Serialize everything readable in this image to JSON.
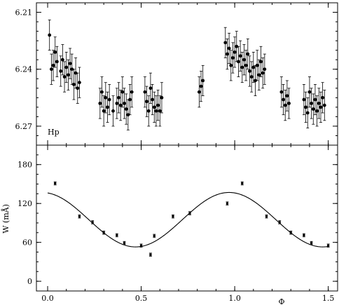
{
  "chart_data": [
    {
      "type": "scatter",
      "panel": "top",
      "annotation": "Hp",
      "xlim": [
        -0.06,
        1.55
      ],
      "ylim": [
        6.28,
        6.205
      ],
      "y_inverted": true,
      "yticks": [
        6.21,
        6.24,
        6.27
      ],
      "ytick_labels": [
        "6.21",
        "6.24",
        "6.27"
      ],
      "error_bars": true,
      "series": [
        {
          "x": [
            0.01,
            0.02,
            0.03,
            0.04,
            0.05,
            0.07,
            0.08,
            0.09,
            0.1,
            0.11,
            0.12,
            0.13,
            0.14,
            0.15,
            0.16,
            0.17,
            0.28,
            0.29,
            0.3,
            0.31,
            0.32,
            0.33,
            0.35,
            0.37,
            0.38,
            0.39,
            0.4,
            0.41,
            0.42,
            0.43,
            0.44,
            0.45,
            0.52,
            0.53,
            0.54,
            0.55,
            0.56,
            0.57,
            0.58,
            0.59,
            0.6,
            0.61,
            0.81,
            0.82,
            0.83,
            0.95,
            0.96,
            0.97,
            0.98,
            0.99,
            1.0,
            1.01,
            1.02,
            1.03,
            1.04,
            1.05,
            1.06,
            1.07,
            1.08,
            1.09,
            1.1,
            1.11,
            1.12,
            1.13,
            1.14,
            1.15,
            1.16,
            1.25,
            1.26,
            1.27,
            1.28,
            1.29,
            1.37,
            1.38,
            1.39,
            1.4,
            1.41,
            1.42,
            1.43,
            1.44,
            1.45,
            1.46,
            1.47,
            1.48
          ],
          "y": [
            6.222,
            6.24,
            6.238,
            6.231,
            6.236,
            6.241,
            6.235,
            6.244,
            6.239,
            6.243,
            6.237,
            6.24,
            6.248,
            6.242,
            6.25,
            6.247,
            6.258,
            6.252,
            6.262,
            6.255,
            6.26,
            6.256,
            6.262,
            6.258,
            6.255,
            6.259,
            6.252,
            6.258,
            6.261,
            6.264,
            6.256,
            6.252,
            6.252,
            6.257,
            6.262,
            6.25,
            6.256,
            6.26,
            6.262,
            6.259,
            6.262,
            6.255,
            6.252,
            6.249,
            6.246,
            6.226,
            6.232,
            6.229,
            6.238,
            6.234,
            6.231,
            6.228,
            6.236,
            6.233,
            6.239,
            6.235,
            6.238,
            6.232,
            6.241,
            6.244,
            6.239,
            6.246,
            6.238,
            6.243,
            6.236,
            6.242,
            6.24,
            6.252,
            6.256,
            6.259,
            6.254,
            6.258,
            6.256,
            6.26,
            6.263,
            6.252,
            6.258,
            6.261,
            6.256,
            6.262,
            6.258,
            6.26,
            6.255,
            6.259
          ],
          "err": 0.008
        }
      ]
    },
    {
      "type": "scatter",
      "panel": "bottom",
      "xlabel": "Φ",
      "ylabel": "W (mÅ)",
      "xlim": [
        -0.06,
        1.55
      ],
      "ylim": [
        -15,
        210
      ],
      "xticks": [
        0.0,
        0.5,
        1.0,
        1.5
      ],
      "xtick_labels": [
        "0.0",
        "0.5",
        "1.0",
        "1.5"
      ],
      "yticks": [
        0,
        60,
        120,
        180
      ],
      "ytick_labels": [
        "0",
        "60",
        "120",
        "180"
      ],
      "series": [
        {
          "x": [
            0.04,
            0.17,
            0.24,
            0.3,
            0.37,
            0.41,
            0.5,
            0.55,
            0.57,
            0.67,
            0.76,
            0.96,
            1.04,
            1.17,
            1.24,
            1.3,
            1.37,
            1.41,
            1.5
          ],
          "y": [
            151,
            100,
            91,
            75,
            71,
            59,
            55,
            41,
            70,
            100,
            105,
            120,
            151,
            100,
            91,
            75,
            71,
            59,
            55
          ],
          "err": 2.5
        },
        {
          "type": "curve",
          "model": "W(Φ) = 95 + 42·cos(2π(Φ − 0.97))",
          "mean": 95,
          "amplitude": 42,
          "phase_of_max": 0.97,
          "x_range": [
            0.0,
            1.5
          ]
        }
      ]
    }
  ]
}
